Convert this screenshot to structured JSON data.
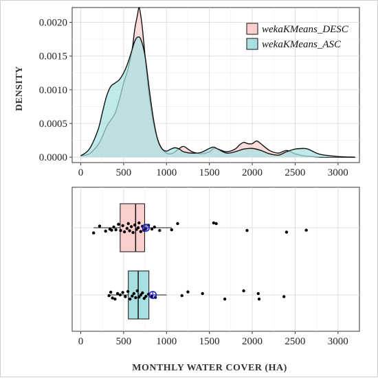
{
  "chart_data": [
    {
      "type": "area",
      "ylabel": "DENSITY",
      "xlim": [
        -100,
        3250
      ],
      "ylim": [
        -8e-05,
        0.00222
      ],
      "x_ticks": [
        0,
        500,
        1000,
        1500,
        2000,
        2500,
        3000
      ],
      "x_tick_labels": [
        "0",
        "500",
        "1000",
        "1500",
        "2000",
        "2500",
        "3000"
      ],
      "y_ticks": [
        0,
        0.0005,
        0.001,
        0.0015,
        0.002
      ],
      "y_tick_labels": [
        "0.0000",
        "0.0005",
        "0.0010",
        "0.0015",
        "0.0020"
      ],
      "grid": true,
      "legend_position": "top-right",
      "series": [
        {
          "name": "wekaKMeans_DESC",
          "color": "#f8766d",
          "fill": "#fbcfcc",
          "x": [
            0,
            100,
            200,
            250,
            300,
            350,
            400,
            450,
            500,
            550,
            600,
            630,
            660,
            680,
            700,
            720,
            750,
            800,
            850,
            900,
            950,
            1000,
            1050,
            1100,
            1150,
            1200,
            1250,
            1300,
            1400,
            1500,
            1550,
            1600,
            1700,
            1800,
            1850,
            1900,
            1950,
            2000,
            2050,
            2100,
            2200,
            2300,
            2350,
            2400,
            2450,
            2500,
            2600,
            2700,
            2800,
            3000,
            3200
          ],
          "y": [
            2e-05,
            5e-05,
            0.00018,
            0.0003,
            0.00045,
            0.00055,
            0.00065,
            0.00085,
            0.0011,
            0.0013,
            0.0016,
            0.0019,
            0.0021,
            0.00222,
            0.0021,
            0.0019,
            0.0015,
            0.0009,
            0.0005,
            0.00025,
            0.00012,
            6e-05,
            5e-05,
            8e-05,
            0.00013,
            0.00016,
            0.00012,
            8e-05,
            5e-05,
            8e-05,
            0.00013,
            0.00012,
            8e-05,
            0.00012,
            0.00018,
            0.00022,
            0.0002,
            0.0002,
            0.00024,
            0.0002,
            0.0001,
            6e-05,
            8e-05,
            0.0001,
            8e-05,
            5e-05,
            2e-05,
            1e-05,
            0,
            0,
            0
          ]
        },
        {
          "name": "wekaKMeans_ASC",
          "color": "#00bfc4",
          "fill": "#a8e0e2",
          "x": [
            0,
            100,
            200,
            250,
            300,
            350,
            400,
            450,
            500,
            550,
            600,
            630,
            660,
            700,
            750,
            800,
            850,
            900,
            950,
            1000,
            1050,
            1100,
            1150,
            1200,
            1300,
            1400,
            1500,
            1550,
            1600,
            1700,
            1800,
            1900,
            2000,
            2100,
            2200,
            2300,
            2350,
            2400,
            2500,
            2600,
            2650,
            2700,
            2800,
            3000,
            3200
          ],
          "y": [
            2e-05,
            0.00012,
            0.0004,
            0.00065,
            0.0009,
            0.00105,
            0.0011,
            0.00115,
            0.00125,
            0.0014,
            0.0016,
            0.00172,
            0.00178,
            0.00175,
            0.0015,
            0.001,
            0.00055,
            0.00025,
            0.00012,
            9e-05,
            0.00012,
            0.00014,
            0.00012,
            8e-05,
            6e-05,
            7e-05,
            0.00013,
            0.00015,
            0.00012,
            6e-05,
            8e-05,
            0.00012,
            0.00013,
            0.0001,
            5e-05,
            3e-05,
            5e-05,
            8e-05,
            0.00012,
            0.00013,
            0.00012,
            9e-05,
            4e-05,
            1e-05,
            0
          ]
        }
      ]
    },
    {
      "type": "boxplot",
      "xlabel": "MONTHLY WATER COVER (HA)",
      "xlim": [
        -100,
        3250
      ],
      "x_ticks": [
        0,
        500,
        1000,
        1500,
        2000,
        2500,
        3000
      ],
      "x_tick_labels": [
        "0",
        "500",
        "1000",
        "1500",
        "2000",
        "2500",
        "3000"
      ],
      "grid": true,
      "series": [
        {
          "name": "wekaKMeans_DESC",
          "color": "#fbcfcc",
          "q1": 460,
          "median": 640,
          "q3": 745,
          "whisker_low": 150,
          "whisker_high": 1060,
          "mean": 760,
          "points_x": [
            150,
            220,
            290,
            340,
            360,
            385,
            410,
            440,
            465,
            490,
            510,
            540,
            555,
            570,
            590,
            610,
            630,
            650,
            670,
            680,
            700,
            720,
            735,
            760,
            790,
            830,
            860,
            920,
            1060,
            1130,
            1550,
            1580,
            1940,
            2400,
            2630
          ],
          "points_y": [
            0.38,
            -0.12,
            0.25,
            0.1,
            0.18,
            -0.05,
            0.15,
            -0.25,
            0.2,
            -0.15,
            0.3,
            0.05,
            -0.3,
            0.22,
            -0.08,
            0.35,
            -0.2,
            0.12,
            0.0,
            -0.35,
            0.28,
            -0.1,
            0.18,
            0.06,
            -0.18,
            0.1,
            -0.05,
            0.2,
            0.15,
            -0.3,
            -0.35,
            -0.3,
            0.2,
            0.32,
            0.18
          ]
        },
        {
          "name": "wekaKMeans_ASC",
          "color": "#a8e0e2",
          "q1": 555,
          "median": 670,
          "q3": 795,
          "whisker_low": 330,
          "whisker_high": 1000,
          "mean": 840,
          "points_x": [
            330,
            350,
            370,
            400,
            430,
            460,
            490,
            520,
            550,
            575,
            600,
            620,
            640,
            660,
            680,
            700,
            720,
            740,
            760,
            790,
            830,
            870,
            1180,
            1250,
            1420,
            1680,
            1900,
            2070,
            2080,
            2370
          ],
          "points_y": [
            0.05,
            -0.2,
            0.22,
            0.3,
            -0.1,
            0.0,
            -0.18,
            0.12,
            -0.25,
            0.3,
            0.08,
            -0.1,
            0.2,
            -0.3,
            0.15,
            0.0,
            -0.15,
            0.25,
            0.1,
            -0.05,
            0.1,
            0.18,
            0.05,
            -0.22,
            -0.1,
            0.3,
            -0.3,
            -0.1,
            0.3,
            0.12
          ]
        }
      ]
    }
  ]
}
